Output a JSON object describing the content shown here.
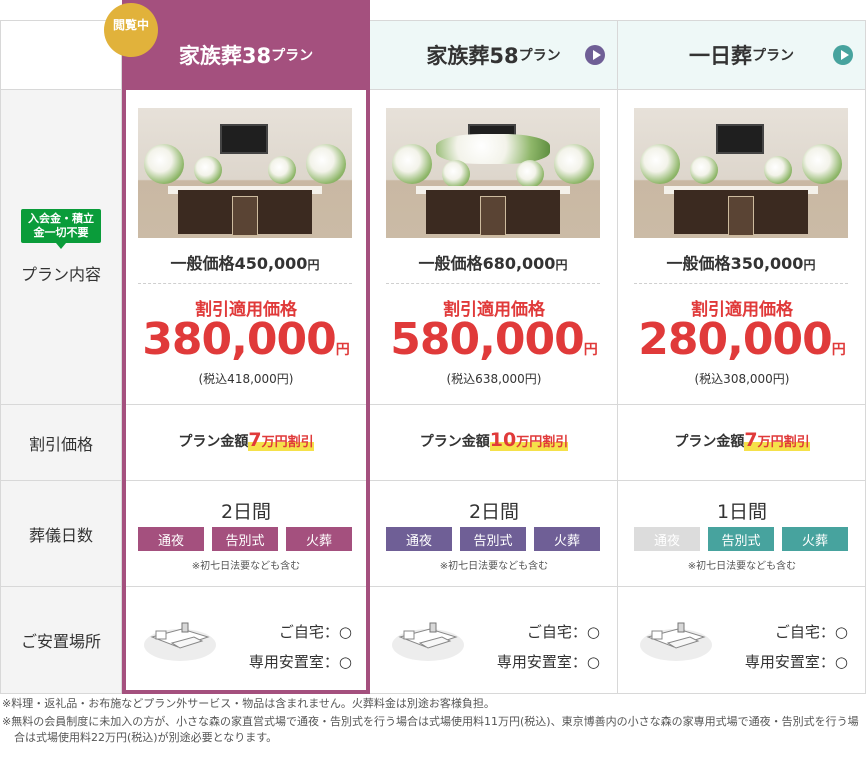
{
  "header": {
    "viewing_badge": "閲覧中",
    "plans": [
      {
        "name": "家族葬38",
        "suffix": "プラン"
      },
      {
        "name": "家族葬58",
        "suffix": "プラン"
      },
      {
        "name": "一日葬",
        "suffix": "プラン"
      }
    ]
  },
  "labels": {
    "badge": "入会金・積立金一切不要",
    "plan": "プラン内容",
    "discount": "割引価格",
    "days": "葬儀日数",
    "place": "ご安置場所"
  },
  "plans": [
    {
      "general_label": "一般価格",
      "general_price": "450,000",
      "yen": "円",
      "disc_label": "割引適用価格",
      "disc_price": "380,000",
      "tax": "(税込418,000円)",
      "disc_prefix": "プラン金額",
      "disc_amount": "7",
      "disc_unit": "万円割引",
      "days": "2日間",
      "chips": [
        "通夜",
        "告別式",
        "火葬"
      ],
      "note": "※初七日法要なども含む",
      "place_home": "ご自宅：○",
      "place_room": "専用安置室：○"
    },
    {
      "general_label": "一般価格",
      "general_price": "680,000",
      "yen": "円",
      "disc_label": "割引適用価格",
      "disc_price": "580,000",
      "tax": "(税込638,000円)",
      "disc_prefix": "プラン金額",
      "disc_amount": "10",
      "disc_unit": "万円割引",
      "days": "2日間",
      "chips": [
        "通夜",
        "告別式",
        "火葬"
      ],
      "note": "※初七日法要なども含む",
      "place_home": "ご自宅：○",
      "place_room": "専用安置室：○"
    },
    {
      "general_label": "一般価格",
      "general_price": "350,000",
      "yen": "円",
      "disc_label": "割引適用価格",
      "disc_price": "280,000",
      "tax": "(税込308,000円)",
      "disc_prefix": "プラン金額",
      "disc_amount": "7",
      "disc_unit": "万円割引",
      "days": "1日間",
      "chips": [
        "通夜",
        "告別式",
        "火葬"
      ],
      "note": "※初七日法要なども含む",
      "place_home": "ご自宅：○",
      "place_room": "専用安置室：○"
    }
  ],
  "footnotes": [
    "※料理・返礼品・お布施などプラン外サービス・物品は含まれません。火葬料金は別途お客様負担。",
    "※無料の会員制度に未加入の方が、小さな森の家直営式場で通夜・告別式を行う場合は式場使用料11万円(税込)、東京博善内の小さな森の家専用式場で通夜・告別式を行う場合は式場使用料22万円(税込)が別途必要となります。"
  ],
  "colors": {
    "active": "#a4507e",
    "plan2": "#6f5f96",
    "plan3": "#47a39e",
    "discount_red": "#e03a3a",
    "green_badge": "#0a9c3a",
    "viewing_badge": "#e1b23b"
  }
}
